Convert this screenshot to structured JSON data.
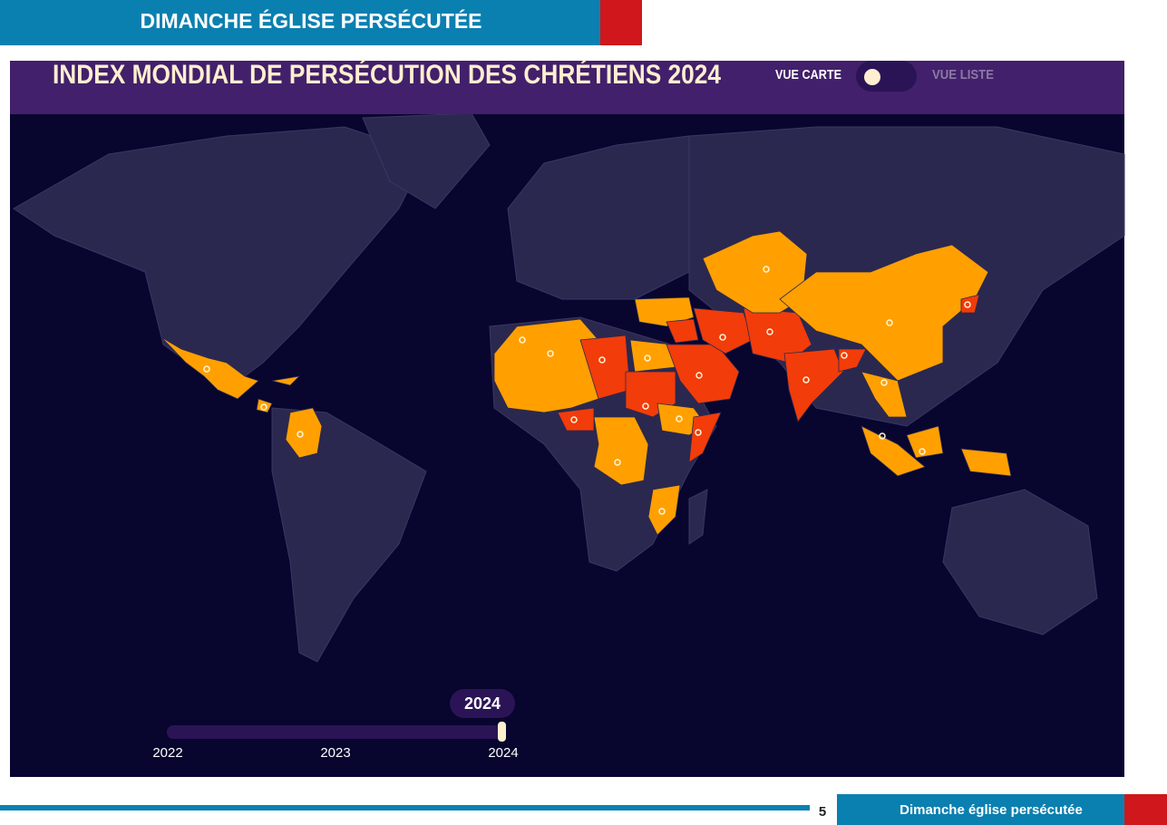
{
  "header": {
    "title": "DIMANCHE ÉGLISE PERSÉCUTÉE"
  },
  "map": {
    "title": "INDEX MONDIAL DE PERSÉCUTION DES CHRÉTIENS 2024",
    "toggle_left": "VUE CARTE",
    "toggle_right": "VUE LISTE",
    "slider": {
      "selected": "2024",
      "labels": [
        "2022",
        "2023",
        "2024"
      ]
    }
  },
  "footer": {
    "page": "5",
    "text": "Dimanche église persécutée"
  }
}
